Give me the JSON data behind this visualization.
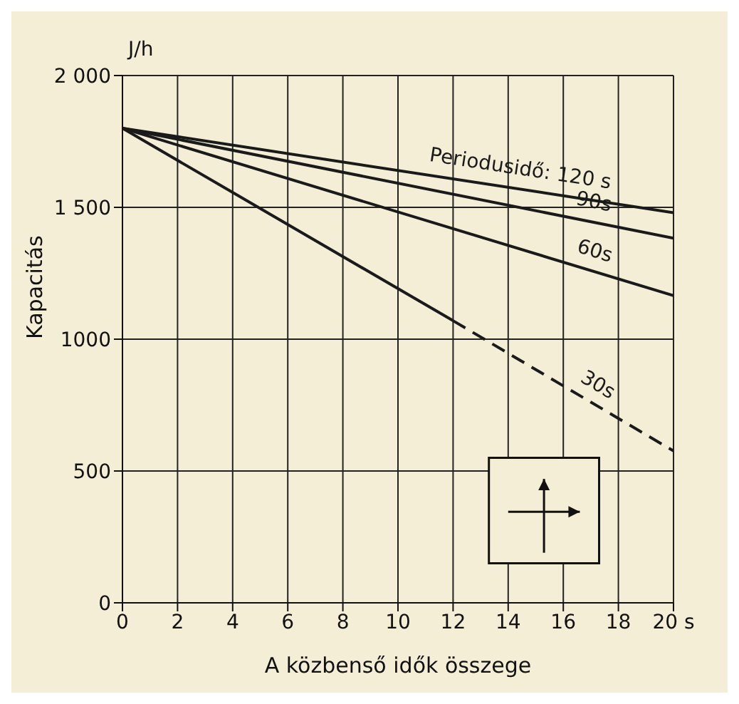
{
  "chart_data": {
    "type": "line",
    "xlabel": "A közbenső idők összege",
    "ylabel": "Kapacitás",
    "annotations": [
      "J/h"
    ],
    "xlim": [
      0,
      20
    ],
    "xticks": [
      0,
      2,
      4,
      6,
      8,
      10,
      12,
      14,
      16,
      18,
      {
        "value": 20,
        "label": "20 s"
      }
    ],
    "ylim": [
      0,
      2000
    ],
    "yticks": [
      0,
      500,
      {
        "value": 1000,
        "label": "1000"
      },
      {
        "value": 1500,
        "label": "1 500"
      },
      {
        "value": 2000,
        "label": "2 000"
      }
    ],
    "grid": true,
    "marker": "none",
    "series": [
      {
        "name": "Periodusidő: 120 s",
        "color": "#1a1a1a",
        "x": [
          0,
          20
        ],
        "values": [
          1800,
          1480
        ],
        "line_style": "solid"
      },
      {
        "name": "90s",
        "color": "#1a1a1a",
        "x": [
          0,
          20
        ],
        "values": [
          1800,
          1383
        ],
        "line_style": "solid"
      },
      {
        "name": "60s",
        "color": "#1a1a1a",
        "x": [
          0,
          20
        ],
        "values": [
          1800,
          1165
        ],
        "line_style": "solid"
      },
      {
        "color": "#1a1a1a",
        "x": [
          0,
          12
        ],
        "values": [
          1800,
          1070
        ],
        "line_style": "solid"
      },
      {
        "name": "30s",
        "color": "#1a1a1a",
        "x": [
          12,
          20
        ],
        "values": [
          1070,
          576
        ],
        "line_style": "dashed"
      }
    ]
  }
}
